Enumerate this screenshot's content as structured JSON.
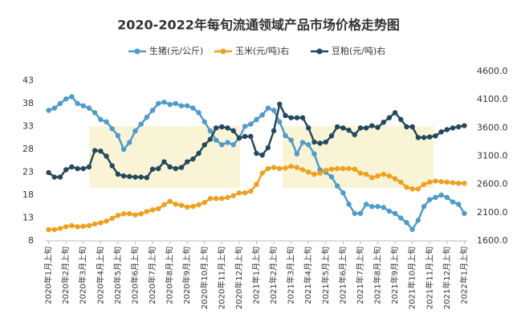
{
  "chart_data": {
    "type": "line",
    "title": "2020-2022年每旬流通领域产品市场价格走势图",
    "categories": [
      "2020年1月上旬",
      null,
      null,
      "2020年2月上旬",
      null,
      null,
      "2020年3月上旬",
      null,
      null,
      "2020年4月上旬",
      null,
      null,
      "2020年5月上旬",
      null,
      null,
      "2020年6月上旬",
      null,
      null,
      "2020年7月上旬",
      null,
      null,
      "2020年8月上旬",
      null,
      null,
      "2020年9月上旬",
      null,
      null,
      "2020年10月上旬",
      null,
      null,
      "2020年11月上旬",
      null,
      null,
      "2020年12月上旬",
      null,
      null,
      "2021年1月上旬",
      null,
      null,
      "2021年2月上旬",
      null,
      null,
      "2021年3月上旬",
      null,
      null,
      "2021年4月上旬",
      null,
      null,
      "2021年5月上旬",
      null,
      null,
      "2021年6月上旬",
      null,
      null,
      "2021年7月上旬",
      null,
      null,
      "2021年8月上旬",
      null,
      null,
      "2021年9月上旬",
      null,
      null,
      "2021年10月上旬",
      null,
      null,
      "2021年11月上旬",
      null,
      null,
      "2021年12月上旬",
      null,
      null,
      "2022年1月上旬"
    ],
    "series": [
      {
        "name": "生猪(元/公斤)",
        "color": "#4f9bc9",
        "axis": "y",
        "values": [
          36.5,
          37,
          38,
          39,
          39.5,
          38,
          37.5,
          37,
          36,
          34.5,
          34,
          32.5,
          31,
          28,
          29.5,
          32,
          33.5,
          35,
          36.5,
          38,
          38.3,
          37.8,
          38,
          37.5,
          37.5,
          37,
          36,
          34,
          32,
          30,
          29,
          29.5,
          29,
          30.5,
          33,
          33.5,
          34.5,
          35.5,
          37,
          36.5,
          34,
          31,
          30,
          27,
          29.5,
          29,
          27,
          23.5,
          23,
          22,
          20,
          18.5,
          16,
          14,
          14,
          16,
          15.5,
          15.5,
          15.3,
          14.5,
          14,
          13,
          12,
          10.5,
          12.5,
          15.5,
          17,
          17.5,
          18,
          17.5,
          16.5,
          16,
          14
        ]
      },
      {
        "name": "玉米(元/吨)右",
        "color": "#f0a020",
        "axis": "y2",
        "values": [
          1800,
          1800,
          1820,
          1850,
          1870,
          1850,
          1860,
          1870,
          1900,
          1920,
          1950,
          2000,
          2050,
          2080,
          2080,
          2060,
          2080,
          2120,
          2150,
          2170,
          2240,
          2300,
          2250,
          2230,
          2200,
          2210,
          2240,
          2280,
          2350,
          2350,
          2350,
          2370,
          2400,
          2450,
          2450,
          2480,
          2600,
          2800,
          2880,
          2900,
          2880,
          2890,
          2920,
          2900,
          2860,
          2820,
          2780,
          2800,
          2850,
          2870,
          2880,
          2880,
          2880,
          2870,
          2800,
          2780,
          2720,
          2750,
          2780,
          2750,
          2700,
          2640,
          2550,
          2520,
          2520,
          2600,
          2640,
          2660,
          2650,
          2640,
          2630,
          2620,
          2620
        ]
      },
      {
        "name": "豆粕(元/吨)右",
        "color": "#24495e",
        "axis": "y2",
        "values": [
          2810,
          2730,
          2730,
          2860,
          2910,
          2880,
          2880,
          2910,
          3200,
          3190,
          3100,
          2930,
          2780,
          2750,
          2740,
          2730,
          2730,
          2720,
          2870,
          2880,
          3000,
          2910,
          2880,
          2900,
          3000,
          3050,
          3150,
          3300,
          3400,
          3600,
          3620,
          3600,
          3550,
          3420,
          3450,
          3450,
          3150,
          3120,
          3250,
          3550,
          4020,
          3820,
          3780,
          3780,
          3780,
          3600,
          3350,
          3330,
          3350,
          3460,
          3620,
          3600,
          3560,
          3480,
          3600,
          3600,
          3640,
          3610,
          3700,
          3780,
          3870,
          3750,
          3620,
          3620,
          3430,
          3430,
          3440,
          3460,
          3530,
          3570,
          3600,
          3620,
          3640
        ]
      }
    ],
    "ylim": [
      8,
      45
    ],
    "yticks": [
      8,
      13,
      18,
      23,
      28,
      33,
      38,
      43
    ],
    "y2lim": [
      1600,
      4600
    ],
    "y2ticks": [
      {
        "value": 1600,
        "label": "1600.0"
      },
      {
        "value": 2100,
        "label": "2100.0"
      },
      {
        "value": 2600,
        "label": "2600.0"
      },
      {
        "value": 3100,
        "label": "3100.0"
      },
      {
        "value": 3600,
        "label": "3600.0"
      },
      {
        "value": 4100,
        "label": "4100.0"
      },
      {
        "value": 4600,
        "label": "4600.0"
      }
    ],
    "grid": false
  }
}
